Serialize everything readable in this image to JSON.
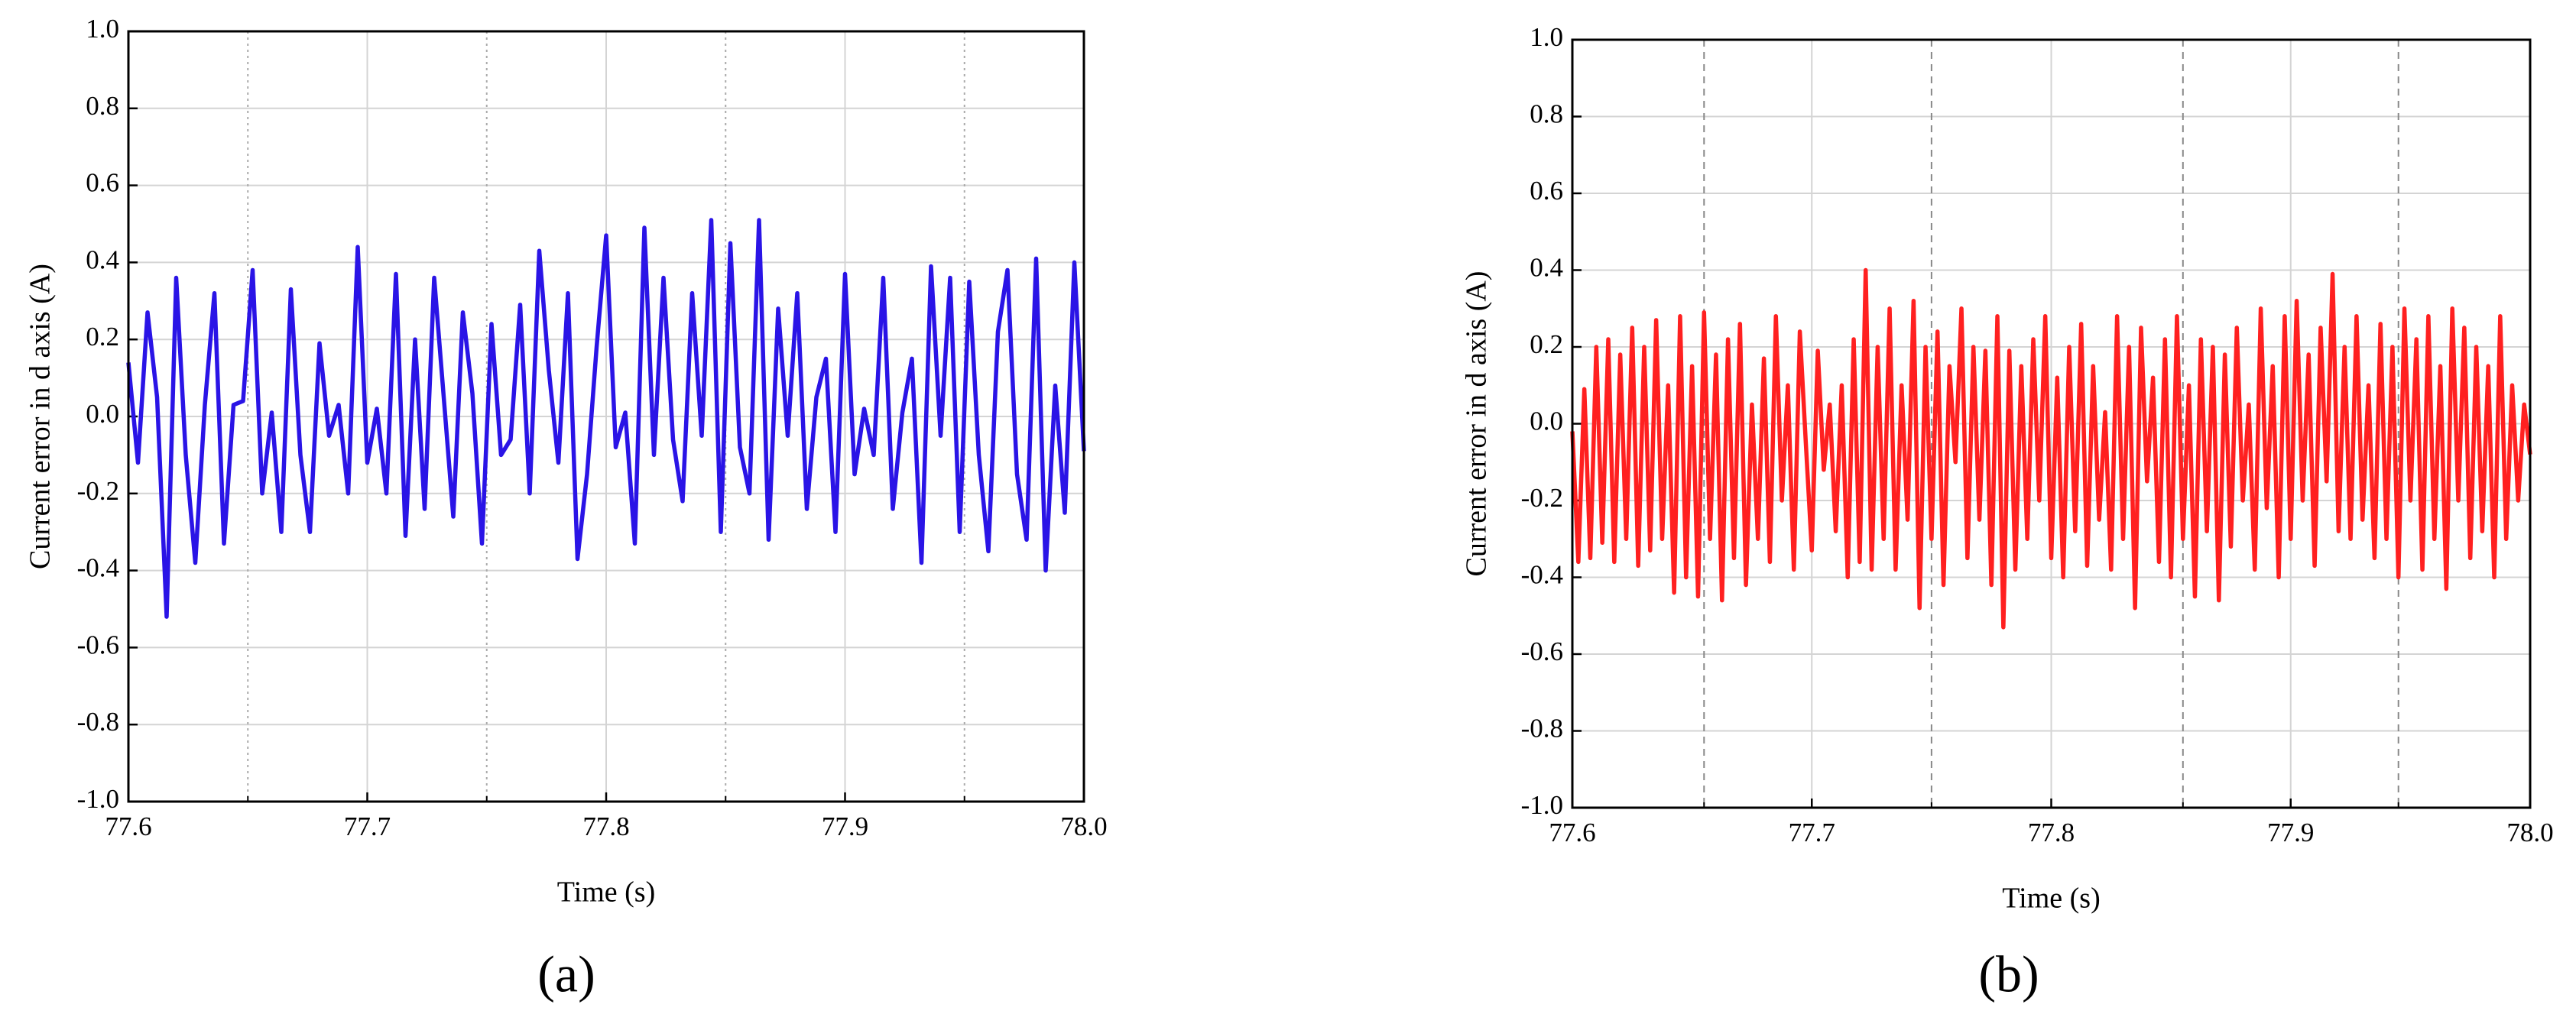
{
  "chart_data": [
    {
      "type": "line",
      "panel_label": "(a)",
      "xlabel": "Time (s)",
      "ylabel": "Current error in d axis (A)",
      "xlim": [
        77.6,
        78.0
      ],
      "xticks": [
        77.6,
        77.7,
        77.8,
        77.9,
        {
          "value": 78.0,
          "label": "78.0"
        }
      ],
      "xminorticks": [
        77.65,
        77.75,
        77.85,
        77.95
      ],
      "ylim": [
        -1.0,
        1.0
      ],
      "yticks": [
        {
          "value": -1.0,
          "label": "-1.0"
        },
        -0.8,
        -0.6,
        -0.4,
        -0.2,
        {
          "value": 0,
          "label": "0.0"
        },
        0.2,
        0.4,
        0.6,
        0.8,
        {
          "value": 1.0,
          "label": "1.0"
        }
      ],
      "grid": true,
      "minor_grid_style": "dotted",
      "series": [
        {
          "color": "#2a14e6",
          "x": [
            77.6,
            77.604,
            77.608,
            77.612,
            77.616,
            77.62,
            77.624,
            77.628,
            77.632,
            77.636,
            77.64,
            77.644,
            77.648,
            77.652,
            77.656,
            77.66,
            77.664,
            77.668,
            77.672,
            77.676,
            77.68,
            77.684,
            77.688,
            77.692,
            77.696,
            77.7,
            77.704,
            77.708,
            77.712,
            77.716,
            77.72,
            77.724,
            77.728,
            77.732,
            77.736,
            77.74,
            77.744,
            77.748,
            77.752,
            77.756,
            77.76,
            77.764,
            77.768,
            77.772,
            77.776,
            77.78,
            77.784,
            77.788,
            77.792,
            77.796,
            77.8,
            77.804,
            77.808,
            77.812,
            77.816,
            77.82,
            77.824,
            77.828,
            77.832,
            77.836,
            77.84,
            77.844,
            77.848,
            77.852,
            77.856,
            77.86,
            77.864,
            77.868,
            77.872,
            77.876,
            77.88,
            77.884,
            77.888,
            77.892,
            77.896,
            77.9,
            77.904,
            77.908,
            77.912,
            77.916,
            77.92,
            77.924,
            77.928,
            77.932,
            77.936,
            77.94,
            77.944,
            77.948,
            77.952,
            77.956,
            77.96,
            77.964,
            77.968,
            77.972,
            77.976,
            77.98,
            77.984,
            77.988,
            77.992,
            77.996,
            78.0
          ],
          "values": [
            0.14,
            -0.12,
            0.27,
            0.05,
            -0.52,
            0.36,
            -0.1,
            -0.38,
            0.03,
            0.32,
            -0.33,
            0.03,
            0.04,
            0.38,
            -0.2,
            0.01,
            -0.3,
            0.33,
            -0.1,
            -0.3,
            0.19,
            -0.05,
            0.03,
            -0.2,
            0.44,
            -0.12,
            0.02,
            -0.2,
            0.37,
            -0.31,
            0.2,
            -0.24,
            0.36,
            0.05,
            -0.26,
            0.27,
            0.06,
            -0.33,
            0.24,
            -0.1,
            -0.06,
            0.29,
            -0.2,
            0.43,
            0.12,
            -0.12,
            0.32,
            -0.37,
            -0.15,
            0.18,
            0.47,
            -0.08,
            0.01,
            -0.33,
            0.49,
            -0.1,
            0.36,
            -0.06,
            -0.22,
            0.32,
            -0.05,
            0.51,
            -0.3,
            0.45,
            -0.08,
            -0.2,
            0.51,
            -0.32,
            0.28,
            -0.05,
            0.32,
            -0.24,
            0.05,
            0.15,
            -0.3,
            0.37,
            -0.15,
            0.02,
            -0.1,
            0.36,
            -0.24,
            0.01,
            0.15,
            -0.38,
            0.39,
            -0.05,
            0.36,
            -0.3,
            0.35,
            -0.1,
            -0.35,
            0.22,
            0.38,
            -0.15,
            -0.32,
            0.41,
            -0.4,
            0.08,
            -0.25,
            0.4,
            -0.09
          ]
        }
      ]
    },
    {
      "type": "line",
      "panel_label": "(b)",
      "xlabel": "Time (s)",
      "ylabel": "Current error in d axis (A)",
      "xlim": [
        77.6,
        78.0
      ],
      "xticks": [
        77.6,
        77.7,
        77.8,
        77.9,
        {
          "value": 78.0,
          "label": "78.0"
        }
      ],
      "xminorticks": [
        77.655,
        77.75,
        77.855,
        77.945
      ],
      "ylim": [
        -1.0,
        1.0
      ],
      "yticks": [
        {
          "value": -1.0,
          "label": "-1.0"
        },
        -0.8,
        -0.6,
        -0.4,
        -0.2,
        {
          "value": 0,
          "label": "0.0"
        },
        0.2,
        0.4,
        0.6,
        0.8,
        {
          "value": 1.0,
          "label": "1.0"
        }
      ],
      "grid": true,
      "minor_grid_style": "dashed",
      "series": [
        {
          "color": "#ff2020",
          "x": [
            77.6,
            77.6025,
            77.605,
            77.6075,
            77.61,
            77.6125,
            77.615,
            77.6175,
            77.62,
            77.6225,
            77.625,
            77.6275,
            77.63,
            77.6325,
            77.635,
            77.6375,
            77.64,
            77.6425,
            77.645,
            77.6475,
            77.65,
            77.6525,
            77.655,
            77.6575,
            77.66,
            77.6625,
            77.665,
            77.6675,
            77.67,
            77.6725,
            77.675,
            77.6775,
            77.68,
            77.6825,
            77.685,
            77.6875,
            77.69,
            77.6925,
            77.695,
            77.6975,
            77.7,
            77.7025,
            77.705,
            77.7075,
            77.71,
            77.7125,
            77.715,
            77.7175,
            77.72,
            77.7225,
            77.725,
            77.7275,
            77.73,
            77.7325,
            77.735,
            77.7375,
            77.74,
            77.7425,
            77.745,
            77.7475,
            77.75,
            77.7525,
            77.755,
            77.7575,
            77.76,
            77.7625,
            77.765,
            77.7675,
            77.77,
            77.7725,
            77.775,
            77.7775,
            77.78,
            77.7825,
            77.785,
            77.7875,
            77.79,
            77.7925,
            77.795,
            77.7975,
            77.8,
            77.8025,
            77.805,
            77.8075,
            77.81,
            77.8125,
            77.815,
            77.8175,
            77.82,
            77.8225,
            77.825,
            77.8275,
            77.83,
            77.8325,
            77.835,
            77.8375,
            77.84,
            77.8425,
            77.845,
            77.8475,
            77.85,
            77.8525,
            77.855,
            77.8575,
            77.86,
            77.8625,
            77.865,
            77.8675,
            77.87,
            77.8725,
            77.875,
            77.8775,
            77.88,
            77.8825,
            77.885,
            77.8875,
            77.89,
            77.8925,
            77.895,
            77.8975,
            77.9,
            77.9025,
            77.905,
            77.9075,
            77.91,
            77.9125,
            77.915,
            77.9175,
            77.92,
            77.9225,
            77.925,
            77.9275,
            77.93,
            77.9325,
            77.935,
            77.9375,
            77.94,
            77.9425,
            77.945,
            77.9475,
            77.95,
            77.9525,
            77.955,
            77.9575,
            77.96,
            77.9625,
            77.965,
            77.9675,
            77.97,
            77.9725,
            77.975,
            77.9775,
            77.98,
            77.9825,
            77.985,
            77.9875,
            77.99,
            77.9925,
            77.995,
            77.9975,
            78.0
          ],
          "values": [
            -0.02,
            -0.36,
            0.09,
            -0.35,
            0.2,
            -0.31,
            0.22,
            -0.36,
            0.18,
            -0.3,
            0.25,
            -0.37,
            0.2,
            -0.33,
            0.27,
            -0.3,
            0.1,
            -0.44,
            0.28,
            -0.4,
            0.15,
            -0.45,
            0.29,
            -0.3,
            0.18,
            -0.46,
            0.22,
            -0.35,
            0.26,
            -0.42,
            0.05,
            -0.3,
            0.17,
            -0.36,
            0.28,
            -0.2,
            0.1,
            -0.38,
            0.24,
            -0.05,
            -0.33,
            0.19,
            -0.12,
            0.05,
            -0.28,
            0.1,
            -0.4,
            0.22,
            -0.36,
            0.4,
            -0.38,
            0.2,
            -0.3,
            0.3,
            -0.38,
            0.1,
            -0.25,
            0.32,
            -0.48,
            0.2,
            -0.3,
            0.24,
            -0.42,
            0.15,
            -0.1,
            0.3,
            -0.35,
            0.2,
            -0.25,
            0.19,
            -0.42,
            0.28,
            -0.53,
            0.19,
            -0.38,
            0.15,
            -0.3,
            0.22,
            -0.2,
            0.28,
            -0.35,
            0.12,
            -0.4,
            0.2,
            -0.28,
            0.26,
            -0.37,
            0.15,
            -0.25,
            0.03,
            -0.38,
            0.28,
            -0.3,
            0.2,
            -0.48,
            0.25,
            -0.15,
            0.12,
            -0.36,
            0.22,
            -0.4,
            0.28,
            -0.3,
            0.1,
            -0.45,
            0.22,
            -0.28,
            0.2,
            -0.46,
            0.18,
            -0.32,
            0.25,
            -0.2,
            0.05,
            -0.38,
            0.3,
            -0.22,
            0.15,
            -0.4,
            0.28,
            -0.3,
            0.32,
            -0.2,
            0.18,
            -0.37,
            0.25,
            -0.15,
            0.39,
            -0.28,
            0.2,
            -0.3,
            0.28,
            -0.25,
            0.1,
            -0.35,
            0.26,
            -0.3,
            0.2,
            -0.4,
            0.3,
            -0.2,
            0.22,
            -0.38,
            0.28,
            -0.3,
            0.15,
            -0.43,
            0.3,
            -0.2,
            0.25,
            -0.35,
            0.2,
            -0.28,
            0.15,
            -0.4,
            0.28,
            -0.3,
            0.1,
            -0.2,
            0.05,
            -0.08
          ]
        }
      ]
    }
  ]
}
